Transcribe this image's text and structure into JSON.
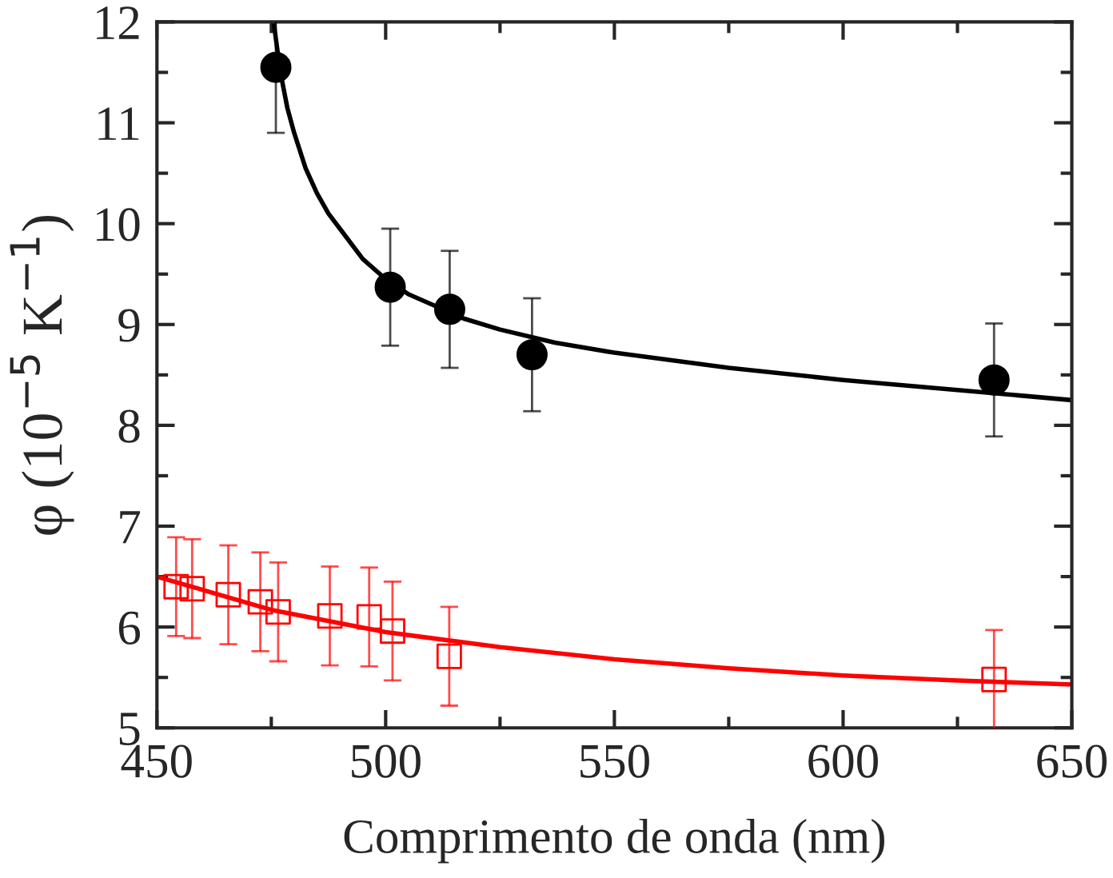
{
  "chart_data": {
    "type": "scatter",
    "xlabel": "Comprimento de onda (nm)",
    "ylabel": "φ (10$^{−5}$ K$^{−1}$)",
    "xlim": [
      450,
      650
    ],
    "xticks": [
      450,
      500,
      550,
      600,
      650
    ],
    "ylim": [
      5,
      12
    ],
    "yticks": [
      5,
      6,
      7,
      8,
      9,
      10,
      11,
      12
    ],
    "grid": false,
    "legend": false,
    "series": [
      {
        "type": "line",
        "color": "#000000",
        "marker": "none",
        "line_style": "solid",
        "x": [
          475.5,
          477,
          478.5,
          480,
          482.5,
          485,
          487.5,
          490,
          495,
          500,
          505,
          510,
          517,
          525,
          537,
          550,
          575,
          600,
          625,
          650
        ],
        "values": [
          12,
          11.5,
          11.15,
          10.9,
          10.55,
          10.3,
          10.1,
          9.95,
          9.65,
          9.45,
          9.3,
          9.2,
          9.06,
          8.95,
          8.82,
          8.72,
          8.57,
          8.45,
          8.35,
          8.25
        ]
      },
      {
        "color": "#000000",
        "marker": "circle",
        "x": [
          476,
          501,
          514,
          532,
          633
        ],
        "values": [
          11.55,
          9.37,
          9.15,
          8.7,
          8.45
        ],
        "errors": [
          0.65,
          0.58,
          0.58,
          0.56,
          0.56
        ]
      },
      {
        "type": "line",
        "color": "#ff0000",
        "marker": "none",
        "line_style": "solid",
        "x": [
          450,
          475,
          500,
          525,
          550,
          575,
          600,
          625,
          650
        ],
        "values": [
          6.5,
          6.17,
          5.95,
          5.8,
          5.68,
          5.59,
          5.52,
          5.47,
          5.43
        ]
      },
      {
        "color": "#ff0000",
        "marker": "square",
        "x": [
          454.2,
          457.7,
          465.6,
          472.6,
          476.5,
          487.8,
          496.4,
          501.5,
          513.9,
          633
        ],
        "values": [
          6.4,
          6.38,
          6.32,
          6.25,
          6.15,
          6.11,
          6.1,
          5.96,
          5.71,
          5.48
        ],
        "errors": [
          0.49,
          0.49,
          0.49,
          0.49,
          0.49,
          0.49,
          0.49,
          0.49,
          0.49,
          0.49
        ]
      }
    ]
  }
}
